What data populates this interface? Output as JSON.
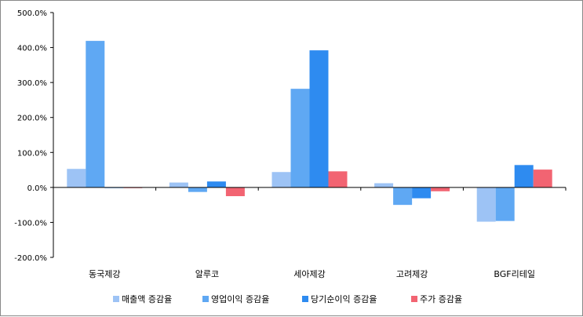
{
  "chart_data": {
    "type": "bar",
    "title": "",
    "xlabel": "",
    "ylabel": "",
    "ylim": [
      -200,
      500
    ],
    "ytick_step": 100,
    "ytick_labels": [
      "-200.0%",
      "-100.0%",
      "0.0%",
      "100.0%",
      "200.0%",
      "300.0%",
      "400.0%",
      "500.0%"
    ],
    "categories": [
      "동국제강",
      "알루코",
      "세아제강",
      "고려제강",
      "BGF리테일"
    ],
    "series": [
      {
        "name": "매출액 증감율",
        "color": "#9DC3F5",
        "values": [
          53,
          14,
          44,
          12,
          -98
        ]
      },
      {
        "name": "영업이익 증감율",
        "color": "#5FA8F3",
        "values": [
          419,
          -13,
          282,
          -50,
          -96
        ]
      },
      {
        "name": "당기순이익 증감율",
        "color": "#2E8BF0",
        "values": [
          0,
          17,
          392,
          -31,
          64
        ]
      },
      {
        "name": "주가 증감율",
        "color": "#F26472",
        "values": [
          -2,
          -25,
          46,
          -11,
          51
        ]
      }
    ],
    "grid": false,
    "legend": "bottom"
  }
}
